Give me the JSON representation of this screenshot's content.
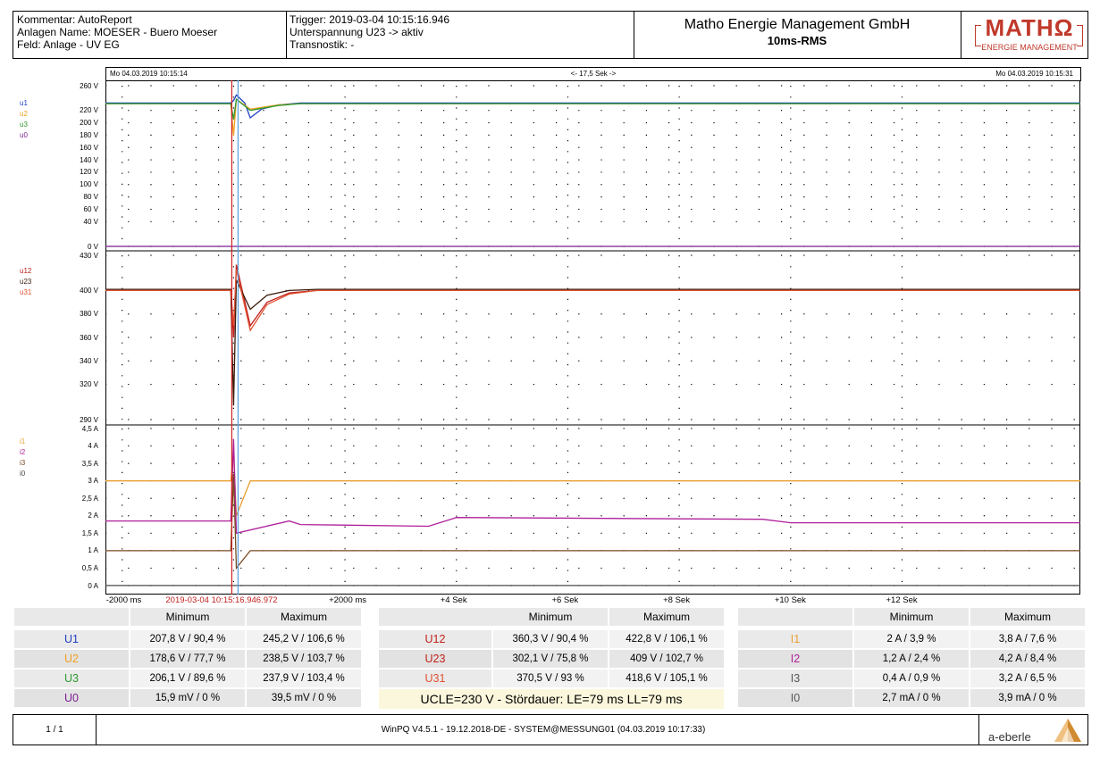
{
  "header": {
    "comment": "Kommentar: AutoReport",
    "plant_name": "Anlagen Name: MOESER - Buero Moeser",
    "field": "Feld: Anlage - UV EG",
    "trigger": "Trigger: 2019-03-04 10:15:16.946",
    "undervoltage": "Unterspannung U23 -> aktiv",
    "transnostik": "Transnostik: -",
    "company": "Matho Energie Management GmbH",
    "subtitle": "10ms-RMS",
    "logo_text": "MATHΩ",
    "logo_sub": "ENERGIE MANAGEMENT"
  },
  "timebar": {
    "start": "Mo 04.03.2019 10:15:14",
    "span": "<- 17,5 Sek ->",
    "end": "Mo 04.03.2019 10:15:31"
  },
  "colors": {
    "u1": "#1f3fbf",
    "u2": "#f0a020",
    "u3": "#2e9a2e",
    "u0": "#7b1f8f",
    "u12": "#c0201a",
    "u23": "#3a1a0a",
    "u31": "#e05030",
    "i1": "#e8a030",
    "i2": "#b0209a",
    "i3": "#7a4a20",
    "i0": "#4a4a4a",
    "cursor_red": "#d02020",
    "cursor_blue": "#5aa0e0"
  },
  "chart_data": [
    {
      "type": "line",
      "title": "",
      "ylabel": "V",
      "ylim": [
        0,
        260
      ],
      "yticks": [
        "260 V",
        "220 V",
        "200 V",
        "180 V",
        "160 V",
        "140 V",
        "120 V",
        "100 V",
        "80 V",
        "60 V",
        "40 V",
        "0 V"
      ],
      "ytick_values": [
        260,
        220,
        200,
        180,
        160,
        140,
        120,
        100,
        80,
        60,
        40,
        0
      ],
      "legend": [
        "u1",
        "u2",
        "u3",
        "u0"
      ],
      "series": [
        {
          "name": "u1",
          "x": [
            -2.3,
            -0.05,
            0.0,
            0.05,
            0.2,
            0.3,
            0.5,
            0.8,
            1.2,
            15.2
          ],
          "y": [
            232,
            232,
            236,
            245,
            232,
            208,
            222,
            229,
            232,
            232
          ]
        },
        {
          "name": "u2",
          "x": [
            -2.3,
            -0.05,
            0.0,
            0.05,
            0.3,
            0.8,
            1.2,
            15.2
          ],
          "y": [
            231,
            231,
            179,
            238,
            222,
            229,
            231,
            231
          ]
        },
        {
          "name": "u3",
          "x": [
            -2.3,
            -0.05,
            0.0,
            0.05,
            0.3,
            0.8,
            1.2,
            15.2
          ],
          "y": [
            231,
            231,
            206,
            238,
            220,
            228,
            231,
            231
          ]
        },
        {
          "name": "u0",
          "x": [
            -2.3,
            15.2
          ],
          "y": [
            0.03,
            0.03
          ]
        }
      ]
    },
    {
      "type": "line",
      "title": "",
      "ylabel": "V",
      "ylim": [
        290,
        430
      ],
      "yticks": [
        "430 V",
        "400 V",
        "380 V",
        "360 V",
        "340 V",
        "320 V",
        "290 V"
      ],
      "ytick_values": [
        430,
        400,
        380,
        360,
        340,
        320,
        290
      ],
      "legend": [
        "u12",
        "u23",
        "u31"
      ],
      "series": [
        {
          "name": "u12",
          "x": [
            -2.3,
            -0.05,
            0.0,
            0.05,
            0.3,
            0.6,
            1.0,
            1.5,
            15.2
          ],
          "y": [
            400,
            400,
            360,
            422,
            370,
            390,
            398,
            400,
            400
          ]
        },
        {
          "name": "u23",
          "x": [
            -2.3,
            -0.05,
            0.0,
            0.05,
            0.3,
            0.6,
            1.0,
            1.5,
            15.2
          ],
          "y": [
            401,
            401,
            302,
            409,
            384,
            396,
            400,
            401,
            401
          ]
        },
        {
          "name": "u31",
          "x": [
            -2.3,
            -0.05,
            0.0,
            0.05,
            0.3,
            0.6,
            1.0,
            1.5,
            15.2
          ],
          "y": [
            400,
            400,
            370,
            418,
            366,
            388,
            397,
            400,
            400
          ]
        }
      ]
    },
    {
      "type": "line",
      "title": "",
      "ylabel": "A",
      "ylim": [
        0,
        4.5
      ],
      "yticks": [
        "4,5 A",
        "4 A",
        "3,5 A",
        "3 A",
        "2,5 A",
        "2 A",
        "1,5 A",
        "1 A",
        "0,5 A",
        "0 A"
      ],
      "ytick_values": [
        4.5,
        4,
        3.5,
        3,
        2.5,
        2,
        1.5,
        1,
        0.5,
        0
      ],
      "legend": [
        "i1",
        "i2",
        "i3",
        "i0"
      ],
      "series": [
        {
          "name": "i1",
          "x": [
            -2.3,
            -0.05,
            0.0,
            0.05,
            0.3,
            15.2
          ],
          "y": [
            3.0,
            3.0,
            3.8,
            2.0,
            3.0,
            3.0
          ]
        },
        {
          "name": "i2",
          "x": [
            -2.3,
            -0.05,
            0.0,
            0.05,
            1.0,
            1.2,
            3.5,
            4.0,
            9.5,
            10.0,
            15.2
          ],
          "y": [
            1.85,
            1.85,
            4.2,
            1.5,
            1.85,
            1.75,
            1.7,
            1.95,
            1.9,
            1.8,
            1.8
          ]
        },
        {
          "name": "i3",
          "x": [
            -2.3,
            -0.05,
            0.0,
            0.05,
            0.3,
            15.2
          ],
          "y": [
            1.0,
            1.0,
            3.2,
            0.5,
            1.0,
            1.0
          ]
        },
        {
          "name": "i0",
          "x": [
            -2.3,
            15.2
          ],
          "y": [
            0.003,
            0.003
          ]
        }
      ]
    }
  ],
  "x_axis": {
    "labels": [
      "-2000 ms",
      "2019-03-04 10:15:16.946.972",
      "+2000 ms",
      "+4 Sek",
      "+6 Sek",
      "+8 Sek",
      "+10 Sek",
      "+12 Sek"
    ],
    "values": [
      -2,
      0,
      2,
      4,
      6,
      8,
      10,
      12
    ],
    "range": [
      -2.3,
      15.2
    ]
  },
  "stats": {
    "col_min": "Minimum",
    "col_max": "Maximum",
    "voltage_phase": [
      {
        "label": "U1",
        "min": "207,8 V / 90,4 %",
        "max": "245,2 V / 106,6 %"
      },
      {
        "label": "U2",
        "min": "178,6 V / 77,7 %",
        "max": "238,5 V / 103,7 %"
      },
      {
        "label": "U3",
        "min": "206,1 V / 89,6 %",
        "max": "237,9 V / 103,4 %"
      },
      {
        "label": "U0",
        "min": "15,9 mV / 0 %",
        "max": "39,5 mV / 0 %"
      }
    ],
    "voltage_line": [
      {
        "label": "U12",
        "min": "360,3 V / 90,4 %",
        "max": "422,8 V / 106,1 %"
      },
      {
        "label": "U23",
        "min": "302,1 V / 75,8 %",
        "max": "409 V / 102,7 %"
      },
      {
        "label": "U31",
        "min": "370,5 V / 93 %",
        "max": "418,6 V / 105,1 %"
      }
    ],
    "summary": "UCLE=230 V - Stördauer: LE=79 ms LL=79 ms",
    "current": [
      {
        "label": "I1",
        "min": "2 A / 3,9 %",
        "max": "3,8 A / 7,6 %"
      },
      {
        "label": "I2",
        "min": "1,2 A / 2,4 %",
        "max": "4,2 A / 8,4 %"
      },
      {
        "label": "I3",
        "min": "0,4 A / 0,9 %",
        "max": "3,2 A / 6,5 %"
      },
      {
        "label": "I0",
        "min": "2,7 mA / 0 %",
        "max": "3,9 mA / 0 %"
      }
    ]
  },
  "footer": {
    "page": "1 / 1",
    "software": "WinPQ V4.5.1 - 19.12.2018-DE - SYSTEM@MESSUNG01 (04.03.2019 10:17:33)",
    "brand": "a-eberle"
  }
}
